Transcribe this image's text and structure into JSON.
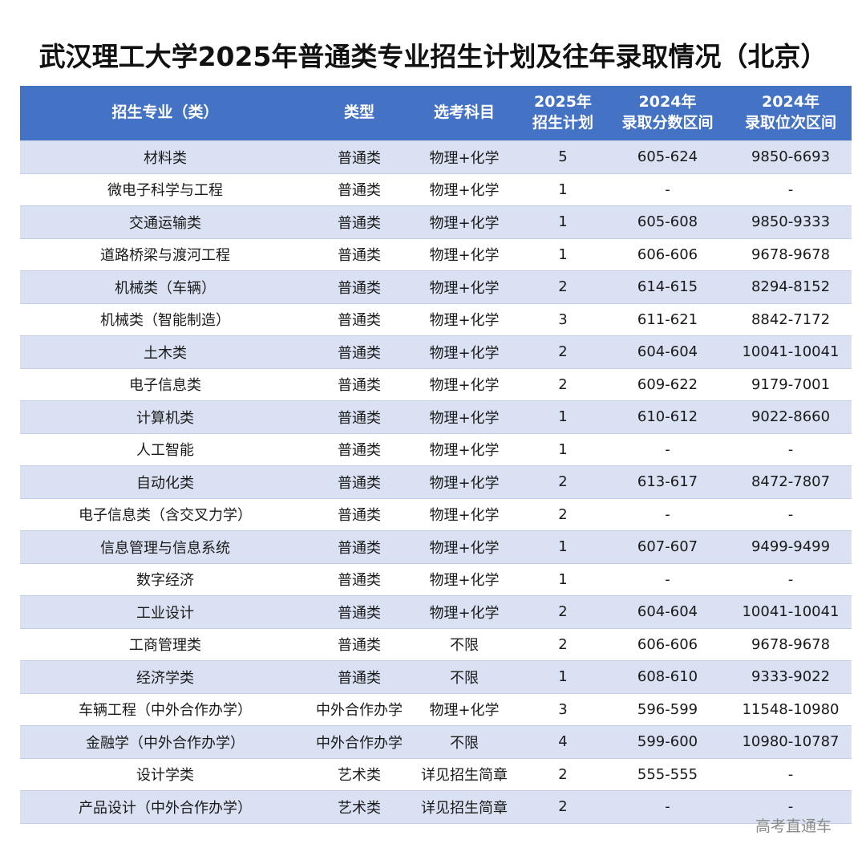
{
  "title": "武汉理工大学2025年普通类专业招生计划及往年录取情况（北京）",
  "colors": {
    "header_bg": "#4472c4",
    "header_text": "#ffffff",
    "row_alt": "#d9e1f2",
    "row_plain": "#ffffff"
  },
  "headers": {
    "major": "招生专业（类）",
    "type": "类型",
    "subjects": "选考科目",
    "plan_l1": "2025年",
    "plan_l2": "招生计划",
    "score_l1": "2024年",
    "score_l2": "录取分数区间",
    "rank_l1": "2024年",
    "rank_l2": "录取位次区间"
  },
  "rows": [
    {
      "major": "材料类",
      "type": "普通类",
      "subjects": "物理+化学",
      "plan": "5",
      "score": "605-624",
      "rank": "9850-6693"
    },
    {
      "major": "微电子科学与工程",
      "type": "普通类",
      "subjects": "物理+化学",
      "plan": "1",
      "score": "-",
      "rank": "-"
    },
    {
      "major": "交通运输类",
      "type": "普通类",
      "subjects": "物理+化学",
      "plan": "1",
      "score": "605-608",
      "rank": "9850-9333"
    },
    {
      "major": "道路桥梁与渡河工程",
      "type": "普通类",
      "subjects": "物理+化学",
      "plan": "1",
      "score": "606-606",
      "rank": "9678-9678"
    },
    {
      "major": "机械类（车辆）",
      "type": "普通类",
      "subjects": "物理+化学",
      "plan": "2",
      "score": "614-615",
      "rank": "8294-8152"
    },
    {
      "major": "机械类（智能制造）",
      "type": "普通类",
      "subjects": "物理+化学",
      "plan": "3",
      "score": "611-621",
      "rank": "8842-7172"
    },
    {
      "major": "土木类",
      "type": "普通类",
      "subjects": "物理+化学",
      "plan": "2",
      "score": "604-604",
      "rank": "10041-10041"
    },
    {
      "major": "电子信息类",
      "type": "普通类",
      "subjects": "物理+化学",
      "plan": "2",
      "score": "609-622",
      "rank": "9179-7001"
    },
    {
      "major": "计算机类",
      "type": "普通类",
      "subjects": "物理+化学",
      "plan": "1",
      "score": "610-612",
      "rank": "9022-8660"
    },
    {
      "major": "人工智能",
      "type": "普通类",
      "subjects": "物理+化学",
      "plan": "1",
      "score": "-",
      "rank": "-"
    },
    {
      "major": "自动化类",
      "type": "普通类",
      "subjects": "物理+化学",
      "plan": "2",
      "score": "613-617",
      "rank": "8472-7807"
    },
    {
      "major": "电子信息类（含交叉力学）",
      "type": "普通类",
      "subjects": "物理+化学",
      "plan": "2",
      "score": "-",
      "rank": "-"
    },
    {
      "major": "信息管理与信息系统",
      "type": "普通类",
      "subjects": "物理+化学",
      "plan": "1",
      "score": "607-607",
      "rank": "9499-9499"
    },
    {
      "major": "数字经济",
      "type": "普通类",
      "subjects": "物理+化学",
      "plan": "1",
      "score": "-",
      "rank": "-"
    },
    {
      "major": "工业设计",
      "type": "普通类",
      "subjects": "物理+化学",
      "plan": "2",
      "score": "604-604",
      "rank": "10041-10041"
    },
    {
      "major": "工商管理类",
      "type": "普通类",
      "subjects": "不限",
      "plan": "2",
      "score": "606-606",
      "rank": "9678-9678"
    },
    {
      "major": "经济学类",
      "type": "普通类",
      "subjects": "不限",
      "plan": "1",
      "score": "608-610",
      "rank": "9333-9022"
    },
    {
      "major": "车辆工程（中外合作办学）",
      "type": "中外合作办学",
      "subjects": "物理+化学",
      "plan": "3",
      "score": "596-599",
      "rank": "11548-10980"
    },
    {
      "major": "金融学（中外合作办学）",
      "type": "中外合作办学",
      "subjects": "不限",
      "plan": "4",
      "score": "599-600",
      "rank": "10980-10787"
    },
    {
      "major": "设计学类",
      "type": "艺术类",
      "subjects": "详见招生简章",
      "plan": "2",
      "score": "555-555",
      "rank": "-"
    },
    {
      "major": "产品设计（中外合作办学）",
      "type": "艺术类",
      "subjects": "详见招生简章",
      "plan": "2",
      "score": "-",
      "rank": "-"
    }
  ],
  "watermark": "高考直通车"
}
